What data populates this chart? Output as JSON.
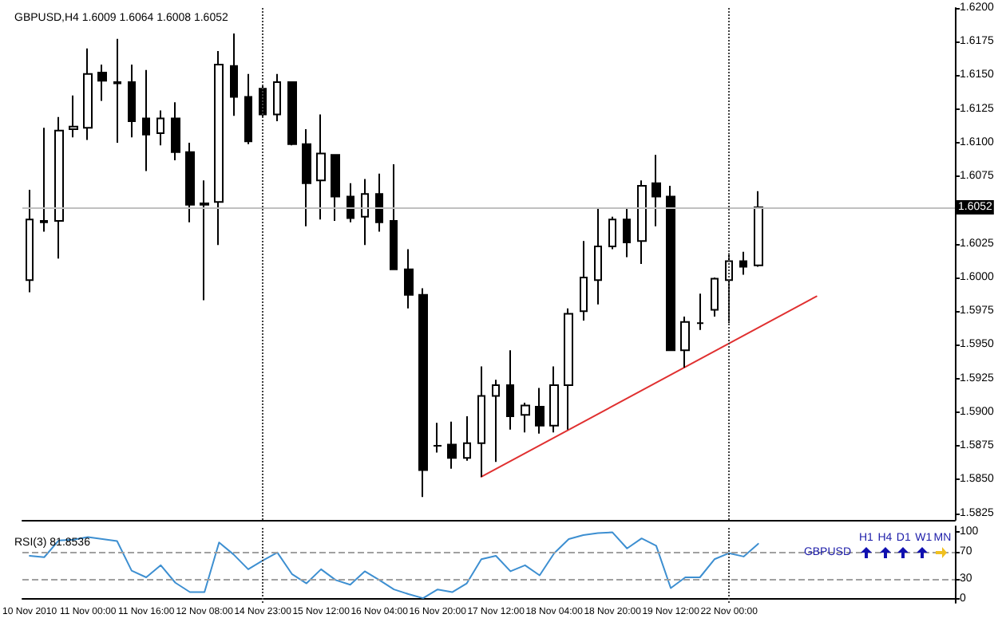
{
  "chart_data": [
    {
      "type": "candlestick",
      "title": "GBPUSD,H4 1.6009 1.6064 1.6008 1.6052",
      "categories": [
        "10 Nov 2010",
        null,
        null,
        null,
        "11 Nov 00:00",
        null,
        null,
        null,
        "11 Nov 16:00",
        null,
        null,
        null,
        "12 Nov 08:00",
        null,
        null,
        null,
        "14 Nov 23:00",
        null,
        null,
        null,
        "15 Nov 12:00",
        null,
        null,
        null,
        "16 Nov 04:00",
        null,
        null,
        null,
        "16 Nov 20:00",
        null,
        null,
        null,
        "17 Nov 12:00",
        null,
        null,
        null,
        "18 Nov 04:00",
        null,
        null,
        null,
        "18 Nov 20:00",
        null,
        null,
        null,
        "19 Nov 12:00",
        null,
        null,
        null,
        "22 Nov 00:00",
        null,
        null,
        null,
        null,
        null,
        null,
        null,
        null,
        null,
        null,
        null,
        null,
        null,
        null,
        null
      ],
      "ohlc": [
        [
          1.5998,
          1.6065,
          1.5989,
          1.6043
        ],
        [
          1.6042,
          1.6111,
          1.6034,
          1.6041
        ],
        [
          1.6042,
          1.6119,
          1.6014,
          1.6109
        ],
        [
          1.611,
          1.6135,
          1.6104,
          1.6112
        ],
        [
          1.6111,
          1.617,
          1.6102,
          1.6151
        ],
        [
          1.6152,
          1.6158,
          1.6131,
          1.6146
        ],
        [
          1.6145,
          1.6177,
          1.61,
          1.6144
        ],
        [
          1.6145,
          1.6158,
          1.6104,
          1.6116
        ],
        [
          1.6118,
          1.6154,
          1.6079,
          1.6106
        ],
        [
          1.6107,
          1.6124,
          1.6098,
          1.6118
        ],
        [
          1.6118,
          1.613,
          1.6087,
          1.6093
        ],
        [
          1.6093,
          1.61,
          1.6041,
          1.6054
        ],
        [
          1.6055,
          1.6072,
          1.5983,
          1.6054
        ],
        [
          1.6056,
          1.6168,
          1.6024,
          1.6158
        ],
        [
          1.6157,
          1.6181,
          1.612,
          1.6134
        ],
        [
          1.6134,
          1.6151,
          1.6099,
          1.6101
        ],
        [
          1.614,
          1.6142,
          1.6119,
          1.6121
        ],
        [
          1.6121,
          1.6151,
          1.6116,
          1.6145
        ],
        [
          1.6145,
          1.6145,
          1.6098,
          1.6099
        ],
        [
          1.6099,
          1.611,
          1.6038,
          1.607
        ],
        [
          1.6072,
          1.6121,
          1.6043,
          1.6092
        ],
        [
          1.6091,
          1.6091,
          1.6042,
          1.606
        ],
        [
          1.606,
          1.607,
          1.6041,
          1.6044
        ],
        [
          1.6045,
          1.6073,
          1.6024,
          1.6062
        ],
        [
          1.6062,
          1.6077,
          1.6034,
          1.6041
        ],
        [
          1.6042,
          1.6084,
          1.6006,
          1.6006
        ],
        [
          1.6006,
          1.6021,
          1.5977,
          1.5987
        ],
        [
          1.5987,
          1.5992,
          1.5837,
          1.5857
        ],
        [
          1.5875,
          1.5892,
          1.587,
          1.5875
        ],
        [
          1.5876,
          1.5893,
          1.5858,
          1.5866
        ],
        [
          1.5866,
          1.5897,
          1.5864,
          1.5877
        ],
        [
          1.5877,
          1.5934,
          1.5852,
          1.5912
        ],
        [
          1.5912,
          1.5924,
          1.5863,
          1.592
        ],
        [
          1.592,
          1.5946,
          1.5887,
          1.5897
        ],
        [
          1.5898,
          1.5907,
          1.5885,
          1.5905
        ],
        [
          1.5904,
          1.5918,
          1.5884,
          1.589
        ],
        [
          1.589,
          1.5934,
          1.5885,
          1.592
        ],
        [
          1.592,
          1.5977,
          1.5887,
          1.5973
        ],
        [
          1.5975,
          1.6027,
          1.5968,
          1.6
        ],
        [
          1.5998,
          1.6052,
          1.598,
          1.6023
        ],
        [
          1.6023,
          1.6045,
          1.6021,
          1.6043
        ],
        [
          1.6043,
          1.6052,
          1.6015,
          1.6026
        ],
        [
          1.6027,
          1.6072,
          1.601,
          1.6068
        ],
        [
          1.607,
          1.6091,
          1.6038,
          1.606
        ],
        [
          1.606,
          1.6068,
          1.5946,
          1.5946
        ],
        [
          1.5946,
          1.5971,
          1.5933,
          1.5967
        ],
        [
          1.5966,
          1.5988,
          1.5961,
          1.5966
        ],
        [
          1.5976,
          1.6,
          1.5971,
          1.5999
        ],
        [
          1.5998,
          1.6018,
          1.5966,
          1.6012
        ],
        [
          1.6012,
          1.6019,
          1.6002,
          1.6008
        ],
        [
          1.6009,
          1.6064,
          1.6008,
          1.6052
        ],
        null,
        null,
        null,
        null,
        null,
        null,
        null,
        null,
        null,
        null,
        null,
        null,
        null
      ],
      "series": [
        {
          "type": "line",
          "color": "#e03030",
          "values": [
            null,
            null,
            null,
            null,
            null,
            null,
            null,
            null,
            null,
            null,
            null,
            null,
            null,
            null,
            null,
            null,
            null,
            null,
            null,
            null,
            null,
            null,
            null,
            null,
            null,
            null,
            null,
            null,
            null,
            null,
            null,
            1.5852,
            null,
            null,
            null,
            null,
            null,
            null,
            null,
            null,
            null,
            null,
            null,
            null,
            null,
            null,
            null,
            null,
            null,
            null,
            null,
            null,
            null,
            null,
            1.5986,
            null,
            null,
            null,
            null,
            null,
            null,
            null,
            null,
            null
          ]
        }
      ],
      "ylim": [
        1.582,
        1.62
      ],
      "yticks": [
        1.5825,
        {
          "value": 1.585,
          "label": "1.5850"
        },
        1.5875,
        {
          "value": 1.59,
          "label": "1.5900"
        },
        1.5925,
        {
          "value": 1.595,
          "label": "1.5950"
        },
        1.5975,
        {
          "value": 1.6,
          "label": "1.6000"
        },
        1.6025,
        1.6075,
        {
          "value": 1.61,
          "label": "1.6100"
        },
        1.6125,
        {
          "value": 1.615,
          "label": "1.6150"
        },
        1.6175,
        {
          "value": 1.62,
          "label": "1.6200"
        }
      ],
      "ref_lines": [
        {
          "axis": "y",
          "value": 1.6052,
          "label": "1.6052",
          "color": "#c0c0c0"
        },
        {
          "axis": "x",
          "value": "14 Nov 23:00",
          "color": "#404040",
          "line_style": "dotted"
        },
        {
          "axis": "x",
          "value": "22 Nov 00:00",
          "color": "#404040",
          "line_style": "dotted"
        }
      ],
      "marker": "none",
      "tick_labels": "y"
    },
    {
      "type": "line",
      "title": "RSI(3) 81.8536",
      "categories": [
        "10 Nov 2010",
        null,
        null,
        null,
        "11 Nov 00:00",
        null,
        null,
        null,
        "11 Nov 16:00",
        null,
        null,
        null,
        "12 Nov 08:00",
        null,
        null,
        null,
        "14 Nov 23:00",
        null,
        null,
        null,
        "15 Nov 12:00",
        null,
        null,
        null,
        "16 Nov 04:00",
        null,
        null,
        null,
        "16 Nov 20:00",
        null,
        null,
        null,
        "17 Nov 12:00",
        null,
        null,
        null,
        "18 Nov 04:00",
        null,
        null,
        null,
        "18 Nov 20:00",
        null,
        null,
        null,
        "19 Nov 12:00",
        null,
        null,
        null,
        "22 Nov 00:00",
        null,
        null,
        null,
        null,
        null,
        null,
        null,
        null,
        null,
        null,
        null,
        null,
        null,
        null,
        null
      ],
      "series": [
        {
          "color": "#3d8fd1",
          "values": [
            64,
            62,
            87,
            88,
            92,
            89,
            86,
            42,
            32,
            50,
            24,
            10,
            10,
            84,
            66,
            44,
            57,
            69,
            37,
            23,
            44,
            28,
            21,
            41,
            28,
            14,
            7,
            1,
            14,
            10,
            23,
            59,
            64,
            41,
            50,
            35,
            68,
            89,
            95,
            98,
            99,
            75,
            90,
            79,
            16,
            32,
            32,
            59,
            68,
            63,
            82,
            null,
            null,
            null,
            null,
            null,
            null,
            null,
            null,
            null,
            null,
            null,
            null,
            null
          ]
        }
      ],
      "ylim": [
        -6,
        108
      ],
      "yticks": [
        0,
        30,
        70,
        100
      ],
      "ref_lines": [
        {
          "axis": "y",
          "value": 70,
          "color": "#a0a0a0",
          "line_style": "dashed"
        },
        {
          "axis": "y",
          "value": 30,
          "color": "#a0a0a0",
          "line_style": "dashed"
        },
        {
          "axis": "x",
          "value": "14 Nov 23:00",
          "color": "#404040",
          "line_style": "dotted"
        },
        {
          "axis": "x",
          "value": "22 Nov 00:00",
          "color": "#404040",
          "line_style": "dotted"
        }
      ],
      "marker": "none",
      "annotations": [
        "H1",
        "H4",
        "D1",
        "W1",
        "MN",
        "GBPUSD"
      ]
    }
  ]
}
